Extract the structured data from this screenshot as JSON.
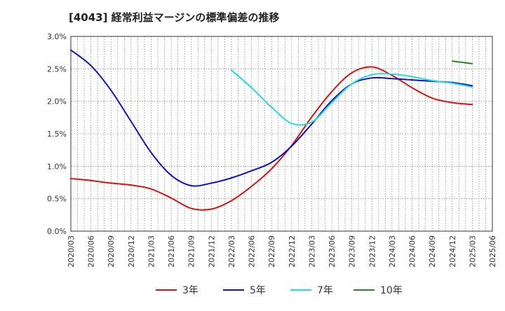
{
  "chart_data": {
    "type": "line",
    "title": "[4043]  経常利益マージンの標準偏差の推移",
    "xlabel": "",
    "ylabel": "",
    "ylim": [
      0,
      3.0
    ],
    "y_ticks": [
      "0.0%",
      "0.5%",
      "1.0%",
      "1.5%",
      "2.0%",
      "2.5%",
      "3.0%"
    ],
    "x_ticks": [
      "2020/03",
      "2020/06",
      "2020/09",
      "2020/12",
      "2021/03",
      "2021/06",
      "2021/09",
      "2021/12",
      "2022/03",
      "2022/06",
      "2022/09",
      "2022/12",
      "2023/03",
      "2023/06",
      "2023/09",
      "2023/12",
      "2024/03",
      "2024/06",
      "2024/09",
      "2024/12",
      "2025/03",
      "2025/06"
    ],
    "grid": true,
    "legend_position": "bottom",
    "series": [
      {
        "name": "3年",
        "color": "#dd1111",
        "points": [
          [
            "2020/03",
            0.81
          ],
          [
            "2020/06",
            0.78
          ],
          [
            "2020/09",
            0.74
          ],
          [
            "2020/12",
            0.71
          ],
          [
            "2021/03",
            0.65
          ],
          [
            "2021/06",
            0.51
          ],
          [
            "2021/09",
            0.35
          ],
          [
            "2021/12",
            0.34
          ],
          [
            "2022/03",
            0.47
          ],
          [
            "2022/06",
            0.69
          ],
          [
            "2022/09",
            0.96
          ],
          [
            "2022/12",
            1.32
          ],
          [
            "2023/03",
            1.76
          ],
          [
            "2023/06",
            2.15
          ],
          [
            "2023/09",
            2.44
          ],
          [
            "2023/12",
            2.53
          ],
          [
            "2024/03",
            2.4
          ],
          [
            "2024/06",
            2.21
          ],
          [
            "2024/09",
            2.05
          ],
          [
            "2024/12",
            1.98
          ],
          [
            "2025/03",
            1.95
          ]
        ]
      },
      {
        "name": "5年",
        "color": "#1111cc",
        "points": [
          [
            "2020/03",
            2.79
          ],
          [
            "2020/06",
            2.55
          ],
          [
            "2020/09",
            2.17
          ],
          [
            "2020/12",
            1.69
          ],
          [
            "2021/03",
            1.21
          ],
          [
            "2021/06",
            0.86
          ],
          [
            "2021/09",
            0.7
          ],
          [
            "2021/12",
            0.74
          ],
          [
            "2022/03",
            0.82
          ],
          [
            "2022/06",
            0.93
          ],
          [
            "2022/09",
            1.06
          ],
          [
            "2022/12",
            1.31
          ],
          [
            "2023/03",
            1.65
          ],
          [
            "2023/06",
            2.01
          ],
          [
            "2023/09",
            2.27
          ],
          [
            "2023/12",
            2.36
          ],
          [
            "2024/03",
            2.35
          ],
          [
            "2024/06",
            2.33
          ],
          [
            "2024/09",
            2.31
          ],
          [
            "2024/12",
            2.29
          ],
          [
            "2025/03",
            2.24
          ]
        ]
      },
      {
        "name": "7年",
        "color": "#22dddd",
        "points": [
          [
            "2022/03",
            2.48
          ],
          [
            "2022/06",
            2.21
          ],
          [
            "2022/09",
            1.91
          ],
          [
            "2022/12",
            1.66
          ],
          [
            "2023/03",
            1.68
          ],
          [
            "2023/06",
            1.98
          ],
          [
            "2023/09",
            2.27
          ],
          [
            "2023/12",
            2.41
          ],
          [
            "2024/03",
            2.42
          ],
          [
            "2024/06",
            2.38
          ],
          [
            "2024/09",
            2.32
          ],
          [
            "2024/12",
            2.28
          ],
          [
            "2025/03",
            2.22
          ]
        ]
      },
      {
        "name": "10年",
        "color": "#228822",
        "points": [
          [
            "2024/12",
            2.62
          ],
          [
            "2025/03",
            2.58
          ]
        ]
      }
    ]
  }
}
